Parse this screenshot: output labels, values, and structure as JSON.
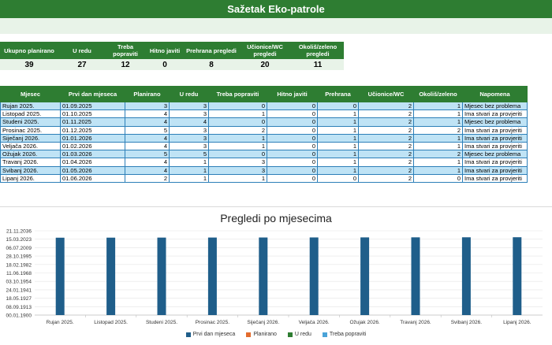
{
  "title": "Sažetak Eko-patrole",
  "kpis": [
    {
      "label": "Ukupno planirano",
      "value": "39"
    },
    {
      "label": "U redu",
      "value": "27"
    },
    {
      "label": "Treba popraviti",
      "value": "12"
    },
    {
      "label": "Hitno javiti",
      "value": "0"
    },
    {
      "label": "Prehrana pregledi",
      "value": "8"
    },
    {
      "label": "Učionice/WC pregledi",
      "value": "20"
    },
    {
      "label": "Okoliš/zeleno pregledi",
      "value": "11"
    }
  ],
  "table": {
    "headers": [
      "Mjesec",
      "Prvi dan mjeseca",
      "Planirano",
      "U redu",
      "Treba popraviti",
      "Hitno javiti",
      "Prehrana",
      "Učionice/WC",
      "Okoliš/zeleno",
      "Napomena"
    ],
    "rows": [
      [
        "Rujan 2025.",
        "01.09.2025",
        "3",
        "3",
        "0",
        "0",
        "0",
        "2",
        "1",
        "Mjesec bez problema"
      ],
      [
        "Listopad 2025.",
        "01.10.2025",
        "4",
        "3",
        "1",
        "0",
        "1",
        "2",
        "1",
        "Ima stvari za provjeriti"
      ],
      [
        "Studeni 2025.",
        "01.11.2025",
        "4",
        "4",
        "0",
        "0",
        "1",
        "2",
        "1",
        "Mjesec bez problema"
      ],
      [
        "Prosinac 2025.",
        "01.12.2025",
        "5",
        "3",
        "2",
        "0",
        "1",
        "2",
        "2",
        "Ima stvari za provjeriti"
      ],
      [
        "Siječanj 2026.",
        "01.01.2026",
        "4",
        "3",
        "1",
        "0",
        "1",
        "2",
        "1",
        "Ima stvari za provjeriti"
      ],
      [
        "Veljača 2026.",
        "01.02.2026",
        "4",
        "3",
        "1",
        "0",
        "1",
        "2",
        "1",
        "Ima stvari za provjeriti"
      ],
      [
        "Ožujak 2026.",
        "01.03.2026",
        "5",
        "5",
        "0",
        "0",
        "1",
        "2",
        "2",
        "Mjesec bez problema"
      ],
      [
        "Travanj 2026.",
        "01.04.2026",
        "4",
        "1",
        "3",
        "0",
        "1",
        "2",
        "1",
        "Ima stvari za provjeriti"
      ],
      [
        "Svibanj 2026.",
        "01.05.2026",
        "4",
        "1",
        "3",
        "0",
        "1",
        "2",
        "1",
        "Ima stvari za provjeriti"
      ],
      [
        "Lipanj 2026.",
        "01.06.2026",
        "2",
        "1",
        "1",
        "0",
        "0",
        "2",
        "0",
        "Ima stvari za provjeriti"
      ]
    ]
  },
  "colors": {
    "green": "#2e7d32",
    "alt_row": "#bfe3f5",
    "border": "#2c7fb8"
  },
  "chart_data": {
    "type": "bar",
    "title": "Pregledi po mjesecima",
    "categories": [
      "Rujan 2025.",
      "Listopad 2025.",
      "Studeni 2025.",
      "Prosinac 2025.",
      "Siječanj 2026.",
      "Veljača 2026.",
      "Ožujak 2026.",
      "Travanj 2026.",
      "Svibanj 2026.",
      "Lipanj 2026."
    ],
    "y_tick_labels": [
      "21.11.2036",
      "15.03.2023",
      "06.07.2009",
      "28.10.1995",
      "18.02.1982",
      "11.06.1968",
      "03.10.1954",
      "24.01.1941",
      "18.05.1927",
      "08.09.1913",
      "00.01.1900"
    ],
    "ylim": [
      0,
      50000
    ],
    "series": [
      {
        "name": "Prvi dan mjeseca",
        "color": "#1f5e8a",
        "values": [
          45901,
          45931,
          45962,
          45992,
          46023,
          46054,
          46082,
          46113,
          46143,
          46174
        ]
      },
      {
        "name": "Planirano",
        "color": "#e36c2e",
        "values": [
          3,
          4,
          4,
          5,
          4,
          4,
          5,
          4,
          4,
          2
        ]
      },
      {
        "name": "U redu",
        "color": "#2e7d32",
        "values": [
          3,
          3,
          4,
          3,
          3,
          3,
          5,
          1,
          1,
          1
        ]
      },
      {
        "name": "Treba popraviti",
        "color": "#4aa3d8",
        "values": [
          0,
          1,
          0,
          2,
          1,
          1,
          0,
          3,
          3,
          1
        ]
      }
    ]
  }
}
